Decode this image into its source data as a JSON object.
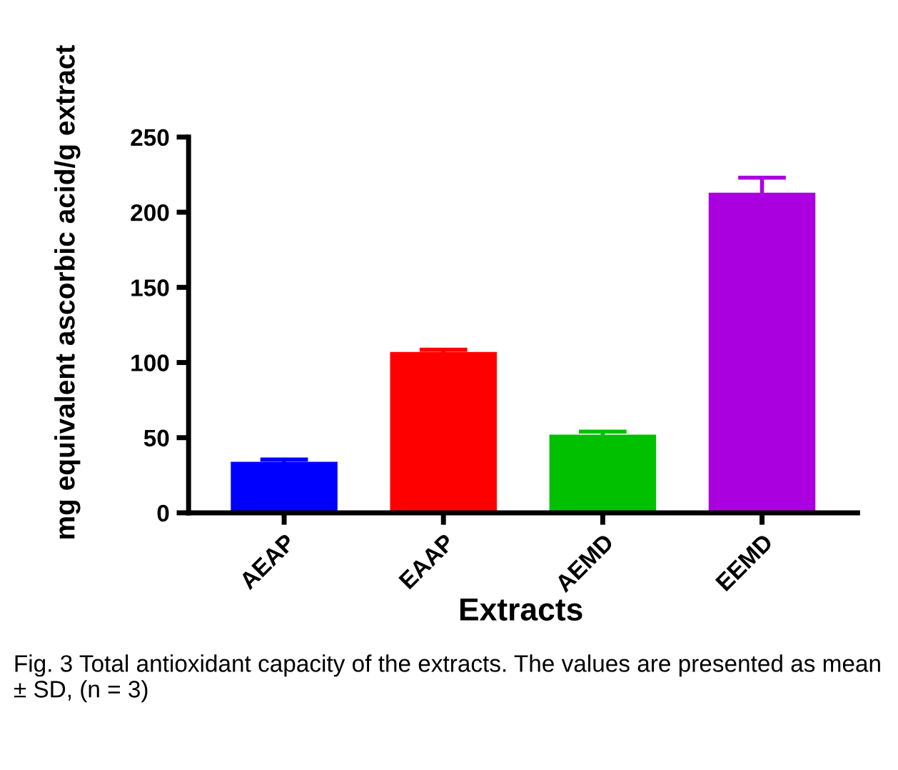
{
  "chart_data": {
    "type": "bar",
    "xlabel": "Extracts",
    "ylabel": "mg equivalent ascorbic acid/g extract",
    "categories": [
      "AEAP",
      "EAAP",
      "AEMD",
      "EEMD"
    ],
    "values": [
      34,
      107,
      52,
      213
    ],
    "errors": [
      1.5,
      1.5,
      2,
      10
    ],
    "colors": [
      "#0000ff",
      "#ff0000",
      "#00c000",
      "#aa00e0"
    ],
    "ylim": [
      0,
      250
    ],
    "yticks": [
      0,
      50,
      100,
      150,
      200,
      250
    ],
    "grid": false,
    "legend": false,
    "annotations": [
      "Fig. 3 Total antioxidant capacity of the extracts. The values are presented as mean ± SD, (n = 3)"
    ]
  }
}
